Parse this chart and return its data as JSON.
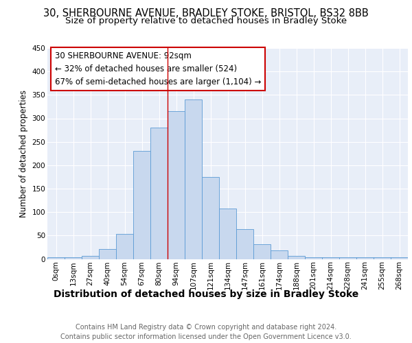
{
  "title_line1": "30, SHERBOURNE AVENUE, BRADLEY STOKE, BRISTOL, BS32 8BB",
  "title_line2": "Size of property relative to detached houses in Bradley Stoke",
  "xlabel": "Distribution of detached houses by size in Bradley Stoke",
  "ylabel": "Number of detached properties",
  "footnote": "Contains HM Land Registry data © Crown copyright and database right 2024.\nContains public sector information licensed under the Open Government Licence v3.0.",
  "categories": [
    "0sqm",
    "13sqm",
    "27sqm",
    "40sqm",
    "54sqm",
    "67sqm",
    "80sqm",
    "94sqm",
    "107sqm",
    "121sqm",
    "134sqm",
    "147sqm",
    "161sqm",
    "174sqm",
    "188sqm",
    "201sqm",
    "214sqm",
    "228sqm",
    "241sqm",
    "255sqm",
    "268sqm"
  ],
  "values": [
    3,
    3,
    6,
    21,
    54,
    230,
    280,
    315,
    340,
    175,
    108,
    63,
    32,
    18,
    7,
    4,
    4,
    3,
    3,
    3,
    3
  ],
  "bar_color": "#c8d8ee",
  "bar_edge_color": "#5b9bd5",
  "bar_edge_width": 0.6,
  "vline_x_index": 7,
  "vline_color": "#cc0000",
  "annotation_text": "30 SHERBOURNE AVENUE: 92sqm\n← 32% of detached houses are smaller (524)\n67% of semi-detached houses are larger (1,104) →",
  "annotation_box_edge_color": "#cc0000",
  "ylim": [
    0,
    450
  ],
  "yticks": [
    0,
    50,
    100,
    150,
    200,
    250,
    300,
    350,
    400,
    450
  ],
  "bg_color": "#e8eef8",
  "fig_bg_color": "#ffffff",
  "grid_color": "#ffffff",
  "title_fontsize": 10.5,
  "subtitle_fontsize": 9.5,
  "xlabel_fontsize": 10,
  "ylabel_fontsize": 8.5,
  "tick_fontsize": 7.5,
  "annot_fontsize": 8.5,
  "footnote_fontsize": 7.0,
  "footnote_color": "#666666"
}
